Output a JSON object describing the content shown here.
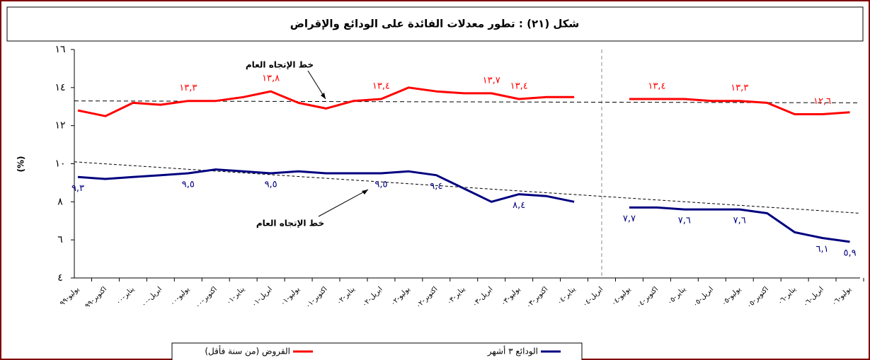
{
  "chart_data": {
    "type": "line",
    "title": "شكل (٢١) : تطور معدلات الفائدة على الودائع والإقراض",
    "ylabel": "(%)",
    "ylim": [
      4,
      16
    ],
    "yticks": [
      {
        "value": 4,
        "label": "٤"
      },
      {
        "value": 6,
        "label": "٦"
      },
      {
        "value": 8,
        "label": "٨"
      },
      {
        "value": 10,
        "label": "١٠"
      },
      {
        "value": 12,
        "label": "١٢"
      },
      {
        "value": 14,
        "label": "١٤"
      },
      {
        "value": 16,
        "label": "١٦"
      }
    ],
    "categories": [
      "يوليو-٩٩",
      "اكتوبر-٩٩",
      "يناير-٠٠",
      "ابريل-٠٠",
      "يوليو-٠٠",
      "اكتوبر-٠٠",
      "يناير-٠١",
      "ابريل-٠١",
      "يوليو-٠١",
      "اكتوبر-٠١",
      "يناير-٠٢",
      "ابريل-٠٢",
      "يوليو-٠٢",
      "اكتوبر-٠٢",
      "يناير-٠٣",
      "ابريل-٠٣",
      "يوليو-٠٣",
      "اكتوبر-٠٣",
      "يناير-٠٤",
      "ابريل-٠٤",
      "يوليو-٠٤",
      "اكتوبر-٠٤",
      "يناير-٠٥",
      "ابريل-٠٥",
      "يوليو-٠٥",
      "اكتوبر-٠٥",
      "يناير-٠٦",
      "ابريل-٠٦",
      "يوليو-٠٦"
    ],
    "series": [
      {
        "name": "القروض (من سنة فأقل)",
        "color": "#ff0000",
        "values": [
          12.8,
          12.5,
          13.2,
          13.1,
          13.3,
          13.3,
          13.5,
          13.8,
          13.2,
          12.9,
          13.3,
          13.4,
          14.0,
          13.8,
          13.7,
          13.7,
          13.4,
          13.5,
          13.5,
          null,
          13.4,
          13.4,
          13.4,
          13.3,
          13.3,
          13.2,
          12.6,
          12.6,
          12.7
        ],
        "value_labels": [
          null,
          null,
          null,
          null,
          "١٣,٣",
          null,
          null,
          "١٣,٨",
          null,
          null,
          null,
          "١٣,٤",
          null,
          null,
          null,
          "١٣,٧",
          "١٣,٤",
          null,
          null,
          null,
          null,
          "١٣,٤",
          null,
          null,
          "١٣,٣",
          null,
          null,
          "١٢,٦",
          null
        ],
        "trend": [
          13.3,
          13.2
        ]
      },
      {
        "name": "الودائع ٣ أشهر",
        "color": "#000080",
        "values": [
          9.3,
          9.2,
          9.3,
          9.4,
          9.5,
          9.7,
          9.6,
          9.5,
          9.6,
          9.5,
          9.5,
          9.5,
          9.6,
          9.4,
          8.7,
          8.0,
          8.4,
          8.3,
          8.0,
          null,
          7.7,
          7.7,
          7.6,
          7.6,
          7.6,
          7.4,
          6.4,
          6.1,
          5.9
        ],
        "value_labels": [
          "٩,٣",
          null,
          null,
          null,
          "٩,٥",
          null,
          null,
          "٩,٥",
          null,
          null,
          null,
          "٩,٥",
          null,
          "٩,٤",
          null,
          null,
          "٨,٤",
          null,
          null,
          null,
          "٧,٧",
          null,
          "٧,٦",
          null,
          "٧,٦",
          null,
          null,
          "٦,١",
          "٥,٩"
        ],
        "trend": [
          10.1,
          7.4
        ]
      }
    ],
    "annotations": [
      "خط الإتجاه العام",
      "خط الإتجاه العام"
    ],
    "legend": "bottom"
  }
}
